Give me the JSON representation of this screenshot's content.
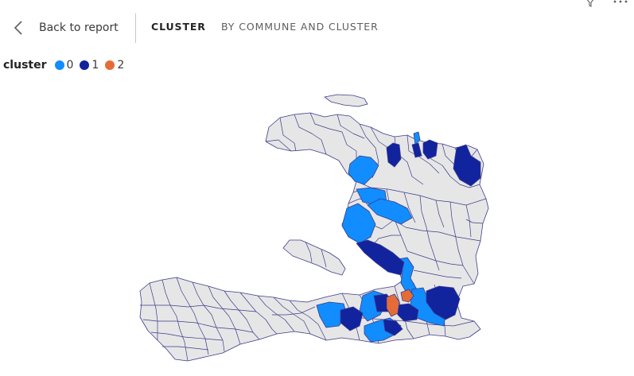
{
  "header": {
    "back_label": "Back to report",
    "tabs": [
      {
        "label": "CLUSTER",
        "active": true
      },
      {
        "label": "BY COMMUNE AND CLUSTER",
        "active": false
      }
    ]
  },
  "legend": {
    "title": "cluster",
    "items": [
      {
        "label": "0",
        "color": "#118dff"
      },
      {
        "label": "1",
        "color": "#12239e"
      },
      {
        "label": "2",
        "color": "#e66c37"
      }
    ]
  },
  "map": {
    "region": "Haiti",
    "base_fill": "#e6e6e6",
    "border_color": "#3c3c8c",
    "highlighted_communes": [
      {
        "cluster": 0,
        "color": "#118dff",
        "count": 9
      },
      {
        "cluster": 1,
        "color": "#12239e",
        "count": 10
      },
      {
        "cluster": 2,
        "color": "#e66c37",
        "count": 2
      }
    ]
  },
  "icons": {
    "back": "chevron-left-icon",
    "filter": "filter-icon",
    "more": "more-options-icon"
  }
}
